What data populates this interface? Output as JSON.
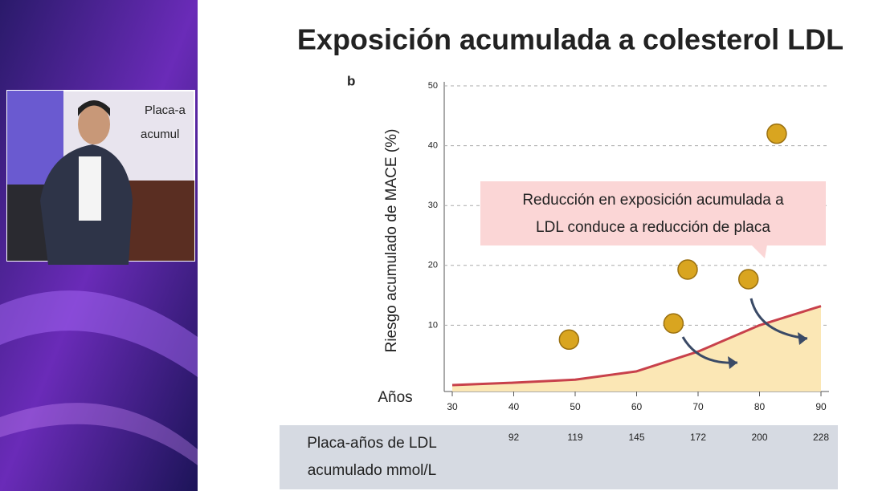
{
  "slide": {
    "title": "Exposición acumulada a colesterol LDL",
    "panel_label": "b",
    "inset_text": [
      "Placa-a",
      "acumul"
    ]
  },
  "chart_data": {
    "type": "line",
    "y_label": "Riesgo acumulado de MACE (%)",
    "x_row_label": "Años",
    "x": [
      30,
      40,
      50,
      60,
      70,
      80,
      90
    ],
    "series": [
      {
        "color": "#c8414b",
        "fill": "#fbe7b5",
        "values": [
          0,
          0.4,
          0.9,
          2.3,
          5.6,
          10,
          13.2
        ]
      }
    ],
    "points": {
      "color": "#d9a520",
      "x": [
        49,
        66,
        68.3,
        78.2,
        82.8
      ],
      "y": [
        7.6,
        10.3,
        19.3,
        17.7,
        42
      ]
    },
    "xlim": [
      30,
      90
    ],
    "xticks": [
      30,
      40,
      50,
      60,
      70,
      80,
      90
    ],
    "ylim": [
      0,
      50
    ],
    "yticks": [
      10,
      20,
      30,
      40,
      50
    ],
    "grid": true,
    "annotation": [
      "Reducción en exposición acumulada a",
      "LDL conduce a reducción de placa"
    ],
    "x2_label": [
      "Placa-años de LDL",
      "acumulado mmol/L"
    ],
    "x2_ticklabels": [
      "92",
      "119",
      "145",
      "172",
      "200",
      "228"
    ]
  }
}
